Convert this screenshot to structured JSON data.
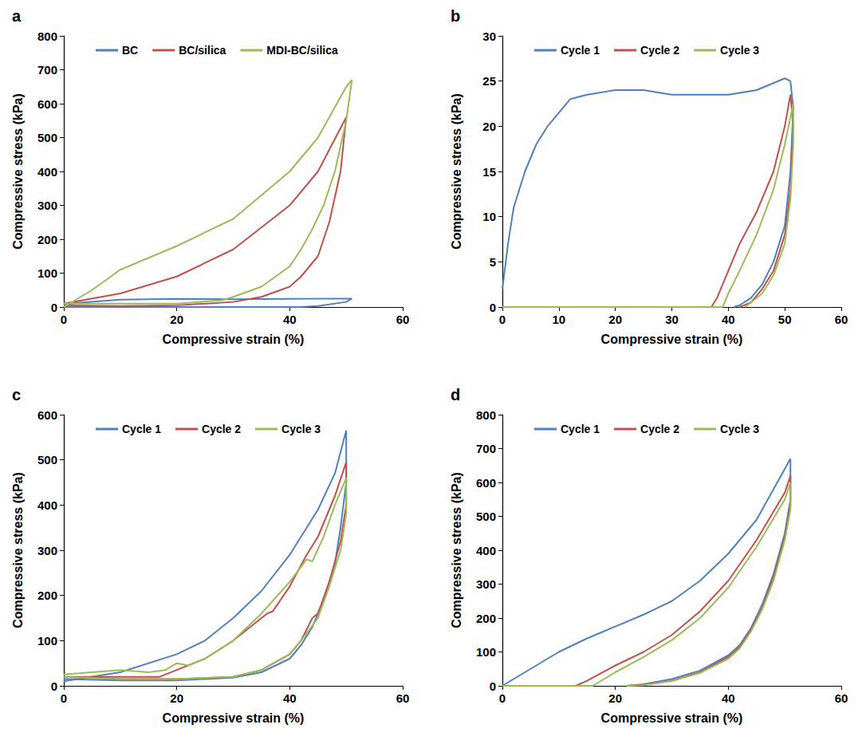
{
  "chart_data": [
    {
      "type": "line",
      "title": "a",
      "x_label": "Compressive strain (%)",
      "y_label": "Compressive stress (kPa)",
      "xlim": [
        0,
        60
      ],
      "xticks": [
        0,
        20,
        40,
        60
      ],
      "ylim": [
        0,
        800
      ],
      "yticks": [
        0,
        100,
        200,
        300,
        400,
        500,
        600,
        700,
        800
      ],
      "grid": false,
      "legend": "top",
      "marker": "none",
      "line_style": "solid",
      "series": [
        {
          "name": "BC",
          "color": "#4f81bd",
          "x": [
            0,
            2,
            10,
            20,
            30,
            40,
            50,
            51,
            50,
            45,
            42,
            40,
            20,
            0
          ],
          "values": [
            2,
            12,
            22,
            24,
            23,
            24,
            25,
            25,
            15,
            3,
            0,
            0,
            0,
            0
          ]
        },
        {
          "name": "BC/silica",
          "color": "#c0504d",
          "x": [
            0,
            10,
            20,
            30,
            40,
            45,
            50,
            49,
            47,
            45,
            42,
            40,
            35,
            30,
            20,
            10,
            0
          ],
          "values": [
            10,
            40,
            90,
            170,
            300,
            400,
            560,
            400,
            250,
            150,
            90,
            60,
            30,
            15,
            5,
            3,
            5
          ]
        },
        {
          "name": "MDI-BC/silica",
          "color": "#9bbb59",
          "x": [
            0,
            5,
            10,
            20,
            30,
            40,
            45,
            50,
            51,
            50,
            48,
            46,
            44,
            42,
            40,
            35,
            30,
            28,
            20,
            0
          ],
          "values": [
            0,
            50,
            110,
            180,
            260,
            400,
            500,
            650,
            670,
            550,
            400,
            300,
            230,
            170,
            120,
            60,
            30,
            20,
            10,
            10
          ]
        }
      ]
    },
    {
      "type": "line",
      "title": "b",
      "x_label": "Compressive strain (%)",
      "y_label": "Compressive stress (kPa)",
      "xlim": [
        0,
        60
      ],
      "xticks": [
        0,
        10,
        20,
        30,
        40,
        50,
        60
      ],
      "ylim": [
        0,
        30
      ],
      "yticks": [
        0,
        5,
        10,
        15,
        20,
        25,
        30
      ],
      "grid": false,
      "legend": "top",
      "marker": "none",
      "line_style": "solid",
      "series": [
        {
          "name": "Cycle 1",
          "color": "#4f81bd",
          "x": [
            0,
            1,
            2,
            4,
            6,
            8,
            10,
            12,
            15,
            20,
            25,
            30,
            35,
            40,
            45,
            50,
            51,
            51.5,
            51,
            50,
            48,
            46,
            44,
            42,
            41
          ],
          "values": [
            2,
            7,
            11,
            15,
            18,
            20,
            21.5,
            23,
            23.5,
            24,
            24,
            23.5,
            23.5,
            23.5,
            24,
            25.3,
            25,
            22,
            15,
            9,
            5,
            2.5,
            1,
            0.2,
            0
          ]
        },
        {
          "name": "Cycle 2",
          "color": "#c0504d",
          "x": [
            0,
            37,
            38,
            40,
            42,
            45,
            48,
            50,
            51,
            51.5,
            51,
            50,
            48,
            46,
            44,
            42
          ],
          "values": [
            0,
            0,
            1,
            4,
            7,
            10.5,
            15,
            20,
            23.5,
            20,
            13,
            8,
            4,
            2,
            0.5,
            0
          ]
        },
        {
          "name": "Cycle 3",
          "color": "#9bbb59",
          "x": [
            0,
            39,
            40,
            42,
            45,
            48,
            50,
            51.5,
            51.5,
            51,
            50,
            48,
            46,
            43
          ],
          "values": [
            0,
            0,
            1.5,
            4,
            8,
            13,
            18,
            22.5,
            18,
            12,
            7,
            3.5,
            1.5,
            0
          ]
        }
      ]
    },
    {
      "type": "line",
      "title": "c",
      "x_label": "Compressive strain (%)",
      "y_label": "Compressive stress (kPa)",
      "xlim": [
        0,
        60
      ],
      "xticks": [
        0,
        20,
        40,
        60
      ],
      "ylim": [
        0,
        600
      ],
      "yticks": [
        0,
        100,
        200,
        300,
        400,
        500,
        600
      ],
      "grid": false,
      "legend": "top",
      "marker": "none",
      "line_style": "solid",
      "series": [
        {
          "name": "Cycle 1",
          "color": "#4f81bd",
          "x": [
            0,
            10,
            20,
            25,
            30,
            35,
            40,
            45,
            48,
            50,
            50,
            49,
            48,
            46,
            44,
            42,
            40,
            35,
            30,
            20,
            10,
            0
          ],
          "values": [
            10,
            30,
            70,
            100,
            150,
            210,
            290,
            390,
            470,
            565,
            450,
            350,
            270,
            190,
            130,
            90,
            60,
            30,
            18,
            12,
            12,
            15
          ]
        },
        {
          "name": "Cycle 2",
          "color": "#c0504d",
          "x": [
            0,
            10,
            17,
            20,
            25,
            30,
            35,
            36,
            37,
            40,
            43,
            45,
            48,
            50,
            50,
            49,
            47,
            45,
            44,
            42,
            40,
            35,
            30,
            20,
            10,
            0
          ],
          "values": [
            20,
            20,
            20,
            35,
            60,
            100,
            150,
            160,
            165,
            220,
            290,
            330,
            420,
            495,
            400,
            320,
            230,
            160,
            150,
            100,
            70,
            35,
            20,
            15,
            15,
            20
          ]
        },
        {
          "name": "Cycle 3",
          "color": "#9bbb59",
          "x": [
            0,
            10,
            15,
            18,
            20,
            22,
            25,
            30,
            35,
            40,
            43,
            44,
            46,
            48,
            50,
            50,
            49,
            47,
            45,
            42,
            40,
            35,
            30,
            20,
            10,
            0
          ],
          "values": [
            25,
            35,
            30,
            35,
            50,
            45,
            60,
            100,
            160,
            230,
            280,
            275,
            330,
            400,
            460,
            380,
            300,
            220,
            150,
            100,
            70,
            35,
            20,
            15,
            15,
            20
          ]
        }
      ]
    },
    {
      "type": "line",
      "title": "d",
      "x_label": "Compressive strain (%)",
      "y_label": "Compressive stress (kPa)",
      "xlim": [
        0,
        60
      ],
      "xticks": [
        0,
        20,
        40,
        60
      ],
      "ylim": [
        0,
        800
      ],
      "yticks": [
        0,
        100,
        200,
        300,
        400,
        500,
        600,
        700,
        800
      ],
      "grid": false,
      "legend": "top",
      "marker": "none",
      "line_style": "solid",
      "series": [
        {
          "name": "Cycle 1",
          "color": "#4f81bd",
          "x": [
            0,
            5,
            10,
            15,
            20,
            25,
            30,
            35,
            40,
            45,
            50,
            51,
            51,
            50,
            48,
            46,
            44,
            42,
            40,
            35,
            30,
            25,
            22
          ],
          "values": [
            0,
            50,
            100,
            140,
            175,
            210,
            250,
            310,
            390,
            490,
            640,
            670,
            550,
            450,
            330,
            240,
            170,
            120,
            90,
            45,
            20,
            5,
            0
          ]
        },
        {
          "name": "Cycle 2",
          "color": "#c0504d",
          "x": [
            0,
            13,
            15,
            20,
            25,
            30,
            35,
            40,
            45,
            50,
            51,
            51,
            50,
            48,
            46,
            44,
            42,
            40,
            35,
            30,
            25,
            22
          ],
          "values": [
            0,
            0,
            15,
            60,
            100,
            150,
            220,
            310,
            430,
            570,
            620,
            530,
            440,
            320,
            230,
            165,
            115,
            85,
            40,
            15,
            3,
            0
          ]
        },
        {
          "name": "Cycle 3",
          "color": "#9bbb59",
          "x": [
            0,
            16,
            20,
            25,
            30,
            35,
            40,
            45,
            50,
            51,
            51,
            50,
            48,
            46,
            44,
            42,
            40,
            35,
            30,
            25,
            22
          ],
          "values": [
            0,
            0,
            40,
            85,
            135,
            200,
            290,
            410,
            550,
            600,
            520,
            430,
            310,
            225,
            160,
            110,
            80,
            38,
            14,
            2,
            0
          ]
        }
      ]
    }
  ]
}
